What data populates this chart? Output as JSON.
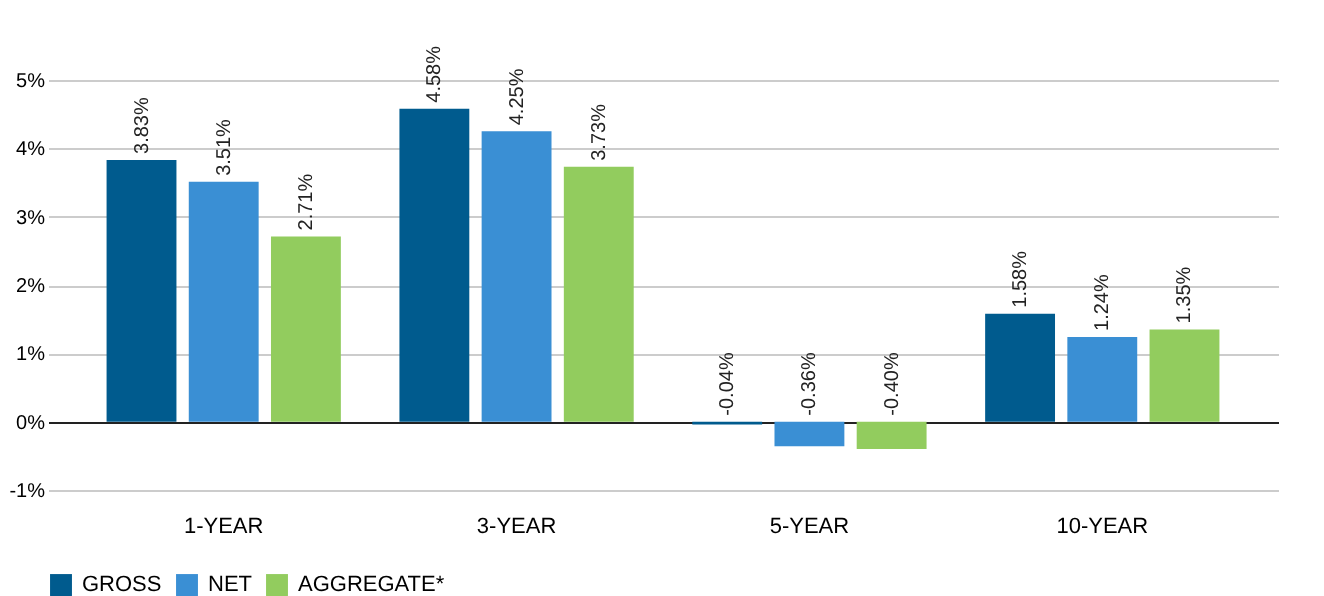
{
  "chart_data": {
    "type": "bar",
    "categories": [
      "1-YEAR",
      "3-YEAR",
      "5-YEAR",
      "10-YEAR"
    ],
    "series": [
      {
        "name": "GROSS",
        "color": "#005b8e",
        "values": [
          3.83,
          4.58,
          -0.04,
          1.58
        ],
        "value_labels": [
          "3.83%",
          "4.58%",
          "-0.04%",
          "1.58%"
        ]
      },
      {
        "name": "NET",
        "color": "#3a8fd4",
        "values": [
          3.51,
          4.25,
          -0.36,
          1.24
        ],
        "value_labels": [
          "3.51%",
          "4.25%",
          "-0.36%",
          "1.24%"
        ]
      },
      {
        "name": "AGGREGATE*",
        "color": "#92cc5e",
        "values": [
          2.71,
          3.73,
          -0.4,
          1.35
        ],
        "value_labels": [
          "2.71%",
          "3.73%",
          "-0.40%",
          "1.35%"
        ]
      }
    ],
    "ylim": [
      -1,
      5
    ],
    "yticks": [
      {
        "value": -1,
        "label": "-1%"
      },
      {
        "value": 0,
        "label": "0%"
      },
      {
        "value": 1,
        "label": "1%"
      },
      {
        "value": 2,
        "label": "2%"
      },
      {
        "value": 3,
        "label": "3%"
      },
      {
        "value": 4,
        "label": "4%"
      },
      {
        "value": 5,
        "label": "5%"
      }
    ],
    "grid": "y",
    "legend": "bottom"
  }
}
